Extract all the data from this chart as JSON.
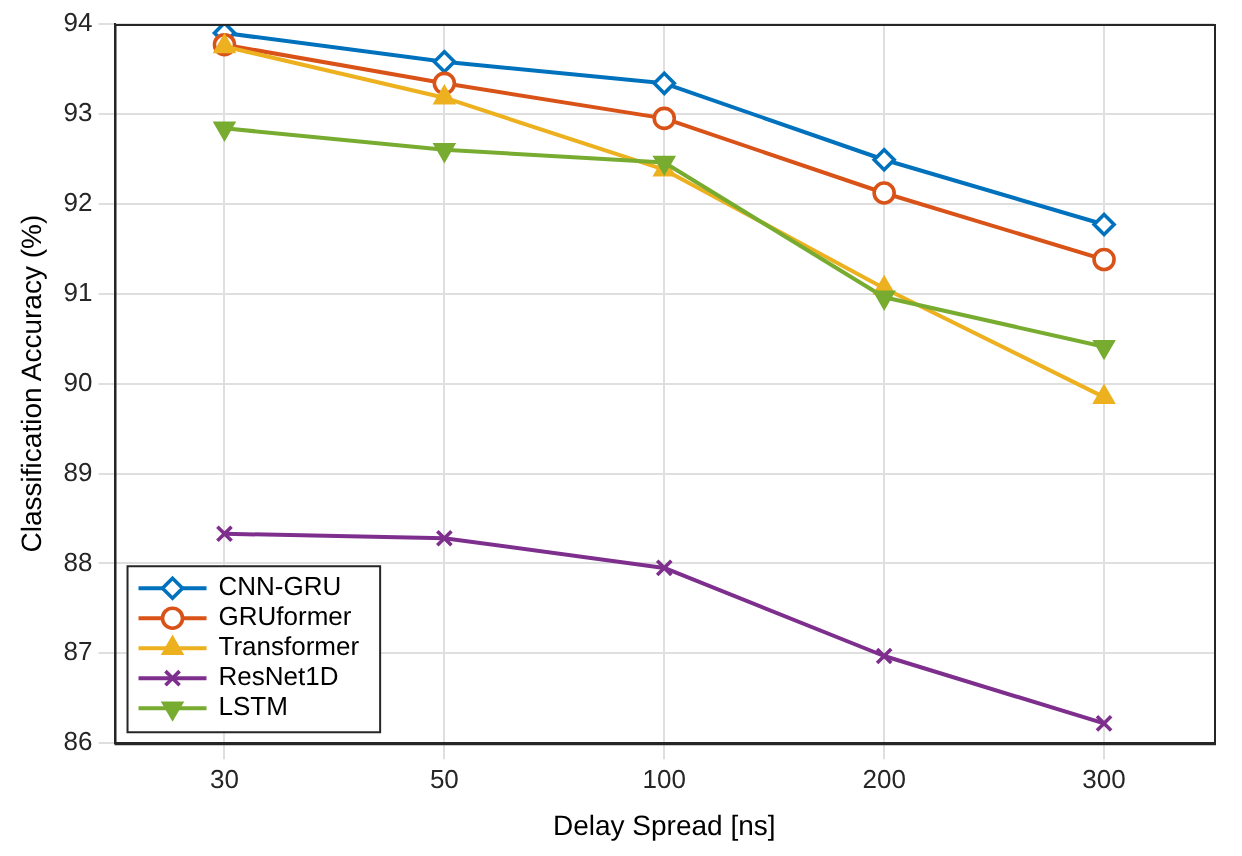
{
  "chart_data": {
    "type": "line",
    "xlabel": "Delay Spread [ns]",
    "ylabel": "Classification Accuracy (%)",
    "categories": [
      "30",
      "50",
      "100",
      "200",
      "300"
    ],
    "ylim": [
      86,
      94
    ],
    "yticks": [
      86,
      87,
      88,
      89,
      90,
      91,
      92,
      93,
      94
    ],
    "grid": true,
    "legend": "bottom left",
    "line_style": "solid",
    "series": [
      {
        "name": "CNN-GRU",
        "color": "#0072bd",
        "marker": "diamond",
        "values": [
          93.9,
          93.58,
          93.34,
          92.49,
          91.77
        ]
      },
      {
        "name": "GRUformer",
        "color": "#d95319",
        "marker": "circle",
        "values": [
          93.77,
          93.34,
          92.95,
          92.12,
          91.38
        ]
      },
      {
        "name": "Transformer",
        "color": "#edb120",
        "marker": "triangle",
        "values": [
          93.75,
          93.18,
          92.38,
          91.06,
          89.85
        ]
      },
      {
        "name": "ResNet1D",
        "color": "#7e2f8e",
        "marker": "cross",
        "values": [
          88.33,
          88.28,
          87.95,
          86.97,
          86.22
        ]
      },
      {
        "name": "LSTM",
        "color": "#77ac30",
        "marker": "triangle-down",
        "values": [
          92.84,
          92.6,
          92.46,
          90.96,
          90.41
        ]
      }
    ]
  }
}
